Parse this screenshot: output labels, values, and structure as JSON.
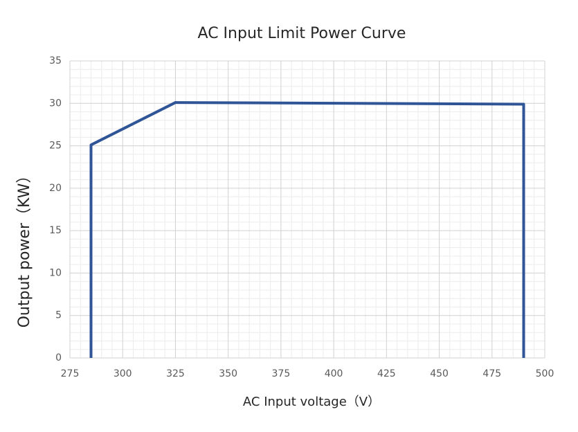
{
  "chart_data": {
    "type": "line",
    "title": "AC Input Limit Power Curve",
    "x_label": "AC Input voltage（V）",
    "y_label": "Output power（KW）",
    "x": [
      285,
      285,
      325,
      490,
      490
    ],
    "values": [
      0,
      25.1,
      30.1,
      29.9,
      0
    ],
    "color": "#2f5597",
    "xlim": [
      275,
      500
    ],
    "xticks": [
      275,
      300,
      325,
      350,
      375,
      400,
      425,
      450,
      475,
      500
    ],
    "ylim": [
      0,
      35
    ],
    "yticks": [
      0,
      5,
      10,
      15,
      20,
      25,
      30,
      35
    ],
    "grid": true,
    "minor_grid": true
  }
}
